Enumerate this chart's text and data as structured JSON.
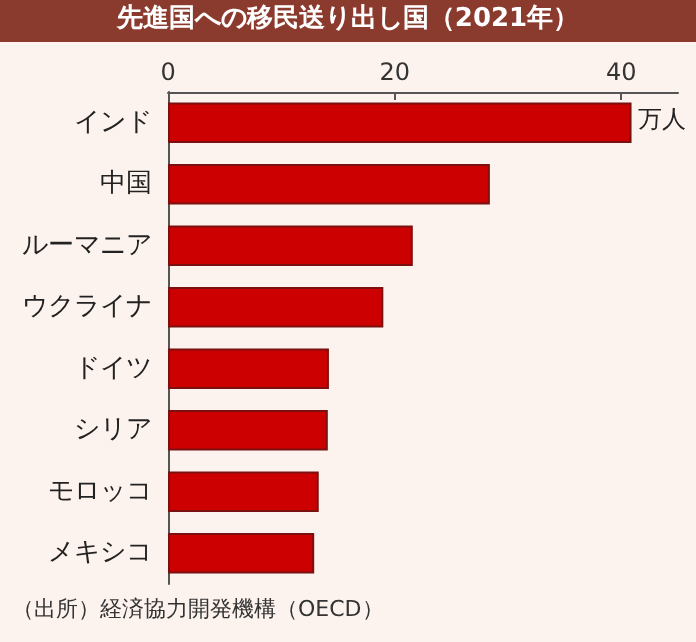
{
  "chart_data": {
    "type": "bar",
    "orientation": "horizontal",
    "title": "先進国への移民送り出し国（2021年）",
    "categories": [
      "インド",
      "中国",
      "ルーマニア",
      "ウクライナ",
      "ドイツ",
      "シリア",
      "モロッコ",
      "メキシコ"
    ],
    "values": [
      40.9,
      28.4,
      21.6,
      19.0,
      14.2,
      14.1,
      13.3,
      12.9
    ],
    "color": "#cc0000",
    "xlabel": "万人",
    "xlim": [
      0,
      45
    ],
    "xticks": [
      0,
      20,
      40
    ],
    "grid": false,
    "annotations": [
      "（出所）経済協力開発機構（OECD）"
    ]
  }
}
